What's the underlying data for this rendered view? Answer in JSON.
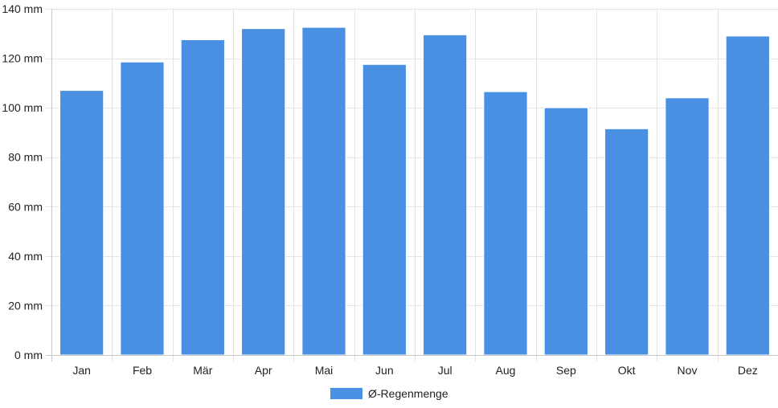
{
  "chart_data": {
    "type": "bar",
    "categories": [
      "Jan",
      "Feb",
      "Mär",
      "Apr",
      "Mai",
      "Jun",
      "Jul",
      "Aug",
      "Sep",
      "Okt",
      "Nov",
      "Dez"
    ],
    "series": [
      {
        "name": "Ø-Regenmenge",
        "values": [
          107,
          118.5,
          127.5,
          132,
          132.5,
          117.5,
          129.5,
          106.5,
          100,
          91.5,
          104,
          129
        ],
        "color": "#4a90e2"
      }
    ],
    "y_unit": "mm",
    "ylim": [
      0,
      140
    ],
    "y_ticks": [
      0,
      20,
      40,
      60,
      80,
      100,
      120,
      140
    ],
    "y_tick_labels": [
      "0 mm",
      "20 mm",
      "40 mm",
      "60 mm",
      "80 mm",
      "100 mm",
      "120 mm",
      "140 mm"
    ],
    "grid": true,
    "legend_position": "bottom-center"
  }
}
